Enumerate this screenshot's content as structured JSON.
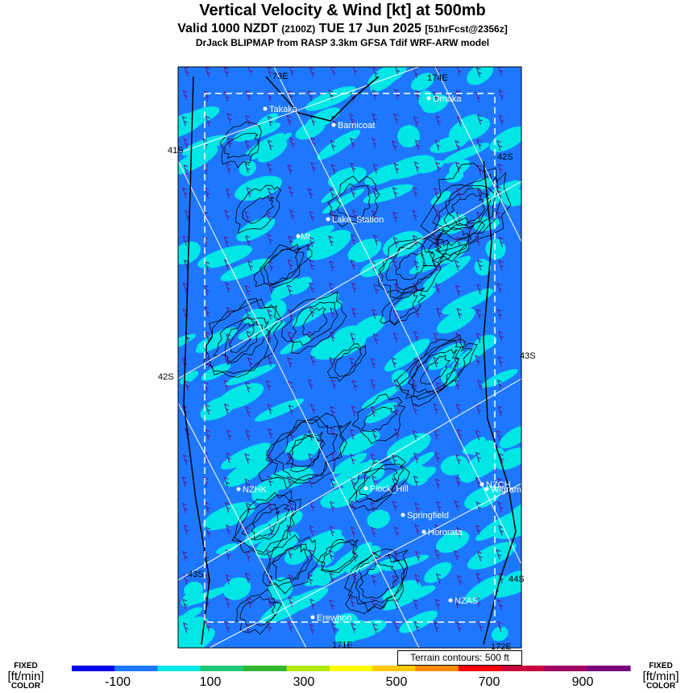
{
  "title": "Vertical Velocity & Wind [kt] at 500mb",
  "subtitle": {
    "valid": "Valid 1000 NZDT",
    "utc": "(2100Z)",
    "date": "TUE 17 Jun 2025",
    "forecast": "[51hrFcst@2356z]"
  },
  "model_line": "DrJack BLIPMAP from RASP 3.3km GFSA Tdif WRF-ARW model",
  "grid_labels": {
    "lon_top_left": "73E",
    "lon_top_right": "174E",
    "lon_bottom_mid": "171E",
    "lon_bottom_right": "172E",
    "lat_left": [
      "41S",
      "42S",
      "43S"
    ],
    "lat_right": [
      "42S",
      "43S",
      "44S"
    ]
  },
  "places": [
    "Takaka",
    "Omaka",
    "Barnicoat",
    "Lake_Station",
    "Mt",
    "NZHK",
    "Flock_Hill",
    "NZCH",
    "Wigram",
    "Springfield",
    "Hororata",
    "NZAS",
    "Erewhon"
  ],
  "terrain_note": "Terrain contours: 500 ft",
  "colorbar": {
    "side_top": "FIXED",
    "side_units": "[ft/min]",
    "side_bottom": "COLOR",
    "tick_labels": [
      "-100",
      "100",
      "300",
      "500",
      "700",
      "900"
    ],
    "colors": [
      "#0000e6",
      "#1e78ff",
      "#00e6e6",
      "#1ec878",
      "#32b432",
      "#b4e614",
      "#ffff00",
      "#ffc800",
      "#ff8c00",
      "#ff0000",
      "#c8003c",
      "#a00064",
      "#780078"
    ]
  },
  "map_colors": {
    "base": "#1e78ff",
    "cyan": "#00e6e6",
    "contour": "#000000"
  }
}
